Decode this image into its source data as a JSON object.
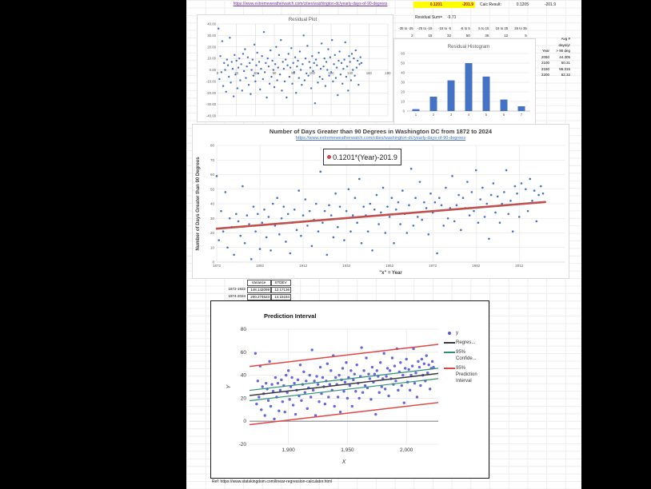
{
  "header": {
    "source_url": "https://www.extremeweatherwatch.com/cities/washington-dc/yearly-days-of-90-degrees",
    "slope_cell": "0.1201",
    "intercept_cell": "-201.9",
    "calc_result_label": "Calc Result:",
    "calc_slope": "0.1205",
    "calc_intercept": "-201.9",
    "residual_sum_label": "Residual Sum=",
    "residual_sum_value": "-9.71",
    "bin_labels": [
      "-35 to -25",
      "-25 to -15",
      "-15 to -5",
      "-5 to 5",
      "5 to 15",
      "15 to 25",
      "25 to 35"
    ],
    "bin_counts": [
      "2",
      "15",
      "32",
      "50",
      "36",
      "12",
      "5"
    ]
  },
  "projection_table": {
    "rows": [
      [
        "",
        "Avg #"
      ],
      [
        "",
        "days/yr"
      ],
      [
        "Year",
        "> 90 deg"
      ],
      [
        "2050",
        "44.305"
      ],
      [
        "2100",
        "50.31"
      ],
      [
        "2150",
        "56.315"
      ],
      [
        "2200",
        "62.32"
      ]
    ]
  },
  "variance_table": {
    "rows": [
      [
        "",
        "Variance",
        "STDEV"
      ],
      [
        "1872-1922",
        "148.142099",
        "12.17136"
      ],
      [
        "1974-2024",
        "200.274523",
        "14.15184"
      ]
    ]
  },
  "footer": {
    "ref": "Ref: https://www.statskingdom.com/linear-regression-calculator.html"
  },
  "chart_data": [
    {
      "id": "residual_plot",
      "type": "scatter",
      "title": "Residual Plot",
      "x_meaning": "observation index",
      "xlim": [
        0,
        180
      ],
      "x_ticks": [
        0,
        20,
        40,
        60,
        80,
        100,
        120,
        140,
        160,
        180
      ],
      "ylim": [
        -40,
        40
      ],
      "y_ticks": [
        40,
        30,
        20,
        10,
        0,
        -10,
        -20,
        -30,
        -40
      ],
      "point_color": "#4472C4",
      "residuals": [
        36,
        -8,
        12,
        -2,
        25,
        -14,
        6,
        0,
        -19,
        9,
        4,
        -6,
        28,
        -11,
        7,
        1,
        -23,
        13,
        -4,
        8,
        -16,
        2,
        10,
        -9,
        5,
        -18,
        14,
        -1,
        18,
        -7,
        3,
        11,
        -13,
        6,
        -21,
        0,
        9,
        -5,
        22,
        -10,
        4,
        15,
        -3,
        7,
        -17,
        1,
        12,
        -8,
        33,
        -2,
        6,
        -24,
        10,
        3,
        -12,
        17,
        -6,
        8,
        0,
        -15,
        5,
        20,
        -9,
        2,
        13,
        -4,
        26,
        -18,
        7,
        1,
        -10,
        9,
        -24,
        4,
        14,
        -6,
        2,
        19,
        -12,
        6,
        -2,
        11,
        -20,
        3,
        8,
        -7,
        16,
        0,
        -13,
        5,
        30,
        -9,
        10,
        -3,
        21,
        -5,
        7,
        2,
        -16,
        12,
        -1,
        6,
        -29,
        9,
        4,
        -11,
        15,
        -6,
        1,
        23,
        -8,
        3,
        10,
        -14,
        7,
        0,
        18,
        -5,
        11,
        -2,
        26,
        -10,
        5,
        13,
        -7,
        2,
        -22,
        8,
        16,
        -4,
        6,
        -12,
        1,
        9,
        24,
        -6,
        3,
        -18,
        12,
        7,
        -9,
        14,
        0,
        10,
        -5,
        17,
        2,
        8,
        -13,
        5,
        11,
        6
      ]
    },
    {
      "id": "residual_histogram",
      "type": "bar",
      "title": "Residual Histogram",
      "categories": [
        1,
        2,
        3,
        4,
        5,
        6,
        7
      ],
      "values": [
        2,
        15,
        32,
        50,
        36,
        12,
        5
      ],
      "ylim": [
        0,
        60
      ],
      "y_ticks": [
        0,
        10,
        20,
        30,
        40,
        50,
        60
      ],
      "bar_color": "#4472C4"
    },
    {
      "id": "days_over_90_scatter",
      "type": "scatter",
      "title": "Number of Days Greater than 90 Degrees in Washington DC from 1872 to 2024",
      "subtitle_link": "https://www.extremeweatherwatch.com/cities/washington-dc/yearly-days-of-90-degrees",
      "xlabel": "\"x\" = Year",
      "ylabel": "Number of Days Greater than 90 Degrees",
      "xlim": [
        1872,
        2033
      ],
      "x_ticks": [
        1872,
        1892,
        1912,
        1932,
        1952,
        1972,
        1992,
        2012
      ],
      "ylim": [
        0,
        80
      ],
      "y_ticks": [
        0,
        10,
        20,
        30,
        40,
        50,
        60,
        70,
        80
      ],
      "start_year": 1872,
      "point_color": "#4472C4",
      "trend": {
        "slope": 0.1201,
        "intercept": -201.9,
        "label": "0.1201*(Year)-201.9",
        "color": "#C0504D",
        "x_start": 1872,
        "x_end": 2024
      },
      "y_rule": "y = round(slope*year + intercept + residual_i), residuals shared with residual_plot"
    },
    {
      "id": "prediction_interval",
      "type": "scatter",
      "title": "Prediction Interval",
      "xlabel": "X",
      "ylabel": "Y",
      "xlim": [
        1867,
        2027
      ],
      "x_ticks": [
        1900,
        1950,
        2000
      ],
      "x_tick_labels": [
        "1,900",
        "1,950",
        "2,000"
      ],
      "ylim": [
        -20,
        80
      ],
      "y_ticks": [
        -20,
        0,
        20,
        40,
        60,
        80
      ],
      "point_color": "#5457DB",
      "regression": {
        "slope": 0.1201,
        "intercept": -201.9,
        "color": "#3a3a3a"
      },
      "ci_offset": 4.5,
      "ci_color": "#2E8F72",
      "pi_offset": 25.3,
      "pi_color": "#E34444",
      "legend": [
        {
          "lines": [
            "y"
          ],
          "swatch": "point",
          "color": "#5457DB"
        },
        {
          "lines": [
            "Regres..."
          ],
          "swatch": "line",
          "color": "#3a3a3a"
        },
        {
          "lines": [
            "95%",
            "Confide..."
          ],
          "swatch": "line",
          "color": "#2E8F72"
        },
        {
          "lines": [
            "95%",
            "Prediction",
            "Interval"
          ],
          "swatch": "line",
          "color": "#E34444"
        }
      ]
    }
  ]
}
